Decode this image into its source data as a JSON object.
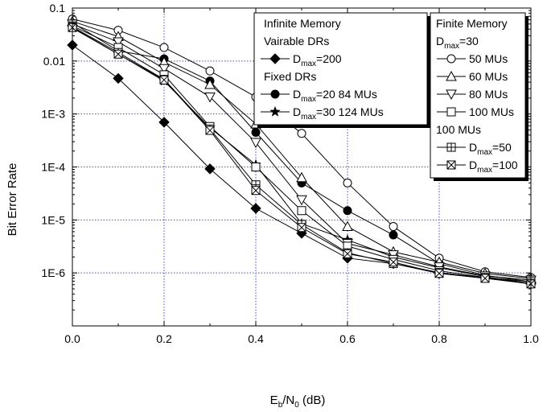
{
  "chart_data": {
    "type": "line",
    "title": "",
    "xlabel": {
      "main": "E",
      "sub1": "b",
      "mid": "/N",
      "sub2": "0",
      "tail": " (dB)"
    },
    "ylabel": "Bit Error Rate",
    "x_scale": "linear",
    "y_scale": "log",
    "xlim": [
      0.0,
      1.0
    ],
    "ylim": [
      1e-07,
      0.1
    ],
    "x_ticks": [
      {
        "value": 0.0,
        "label": "0.0"
      },
      {
        "value": 0.2,
        "label": "0.2"
      },
      {
        "value": 0.4,
        "label": "0.4"
      },
      {
        "value": 0.6,
        "label": "0.6"
      },
      {
        "value": 0.8,
        "label": "0.8"
      },
      {
        "value": 1.0,
        "label": "1.0"
      }
    ],
    "y_ticks": [
      {
        "value": 1e-06,
        "label": "1E-6"
      },
      {
        "value": 1e-05,
        "label": "1E-5"
      },
      {
        "value": 0.0001,
        "label": "1E-4"
      },
      {
        "value": 0.001,
        "label": "1E-3"
      },
      {
        "value": 0.01,
        "label": "0.01"
      },
      {
        "value": 0.1,
        "label": "0.1"
      }
    ],
    "grid": true,
    "x": [
      0.0,
      0.1,
      0.2,
      0.3,
      0.4,
      0.5,
      0.6,
      0.7,
      0.8,
      0.9,
      1.0
    ],
    "series": [
      {
        "id": "inf200",
        "marker": "diamond-filled",
        "values": [
          0.02,
          0.0047,
          0.0007,
          9.2e-05,
          1.65e-05,
          5.6e-06,
          1.9e-06,
          1.5e-06,
          9.8e-07,
          8.3e-07,
          6.2e-07
        ]
      },
      {
        "id": "fix20",
        "marker": "circle-filled",
        "values": [
          0.053,
          0.0155,
          0.011,
          0.0042,
          0.00045,
          5e-05,
          1.5e-05,
          5.2e-06,
          1.5e-06,
          9e-07,
          6.8e-07
        ]
      },
      {
        "id": "fix30",
        "marker": "star-filled",
        "values": [
          0.042,
          0.0135,
          0.0042,
          0.00055,
          0.00011,
          8.5e-06,
          4.2e-06,
          2e-06,
          1.25e-06,
          8.5e-07,
          6.3e-07
        ]
      },
      {
        "id": "fin50",
        "marker": "circle-open",
        "values": [
          0.062,
          0.038,
          0.018,
          0.0065,
          0.0021,
          0.00043,
          5e-05,
          7.5e-06,
          1.9e-06,
          1.05e-06,
          8.2e-07
        ]
      },
      {
        "id": "fin60",
        "marker": "triangle-up-open",
        "values": [
          0.056,
          0.029,
          0.0095,
          0.0036,
          0.00065,
          6.3e-05,
          7.5e-06,
          2.5e-06,
          1.6e-06,
          9.8e-07,
          7.8e-07
        ]
      },
      {
        "id": "fin80",
        "marker": "triangle-down-open",
        "values": [
          0.05,
          0.023,
          0.0072,
          0.0021,
          0.00029,
          2.4e-05,
          3.6e-06,
          2.2e-06,
          1.3e-06,
          8.8e-07,
          7.3e-07
        ]
      },
      {
        "id": "fin100",
        "marker": "square-open",
        "values": [
          0.046,
          0.018,
          0.0055,
          0.00058,
          0.0001,
          1.5e-05,
          3.2e-06,
          1.8e-06,
          1.1e-06,
          8.2e-07,
          6.8e-07
        ]
      },
      {
        "id": "fin100d50",
        "marker": "square-plus",
        "values": [
          0.044,
          0.0145,
          0.0045,
          0.00052,
          4.6e-05,
          8.2e-06,
          2.4e-06,
          1.5e-06,
          1.02e-06,
          8e-07,
          6.3e-07
        ]
      },
      {
        "id": "fin100d100",
        "marker": "square-x",
        "values": [
          0.043,
          0.0135,
          0.0044,
          0.00049,
          3.6e-05,
          7.2e-06,
          2.3e-06,
          1.6e-06,
          9.8e-07,
          7.9e-07,
          6.2e-07
        ]
      }
    ],
    "legends": [
      {
        "placement": "top-center",
        "shadow": true,
        "rows": [
          {
            "kind": "heading",
            "text": "Infinite Memory"
          },
          {
            "kind": "heading",
            "text": "Vairable DRs"
          },
          {
            "kind": "entry",
            "series": "inf200",
            "text_pre": "D",
            "text_sub": "max",
            "text_post": "=200"
          },
          {
            "kind": "heading",
            "text": "Fixed DRs"
          },
          {
            "kind": "entry",
            "series": "fix20",
            "text_pre": "D",
            "text_sub": "max",
            "text_post": "=20 84 MUs"
          },
          {
            "kind": "entry",
            "series": "fix30",
            "text_pre": "D",
            "text_sub": "max",
            "text_post": "=30 124 MUs"
          }
        ]
      },
      {
        "placement": "top-right",
        "shadow": true,
        "rows": [
          {
            "kind": "heading",
            "text": "Finite Memory"
          },
          {
            "kind": "heading-sub",
            "text_pre": "D",
            "text_sub": "max",
            "text_post": "=30"
          },
          {
            "kind": "entry",
            "series": "fin50",
            "text_pre": "50 MUs"
          },
          {
            "kind": "entry",
            "series": "fin60",
            "text_pre": "60 MUs"
          },
          {
            "kind": "entry",
            "series": "fin80",
            "text_pre": "80 MUs"
          },
          {
            "kind": "entry",
            "series": "fin100",
            "text_pre": "100 MUs"
          },
          {
            "kind": "heading",
            "text": "100 MUs"
          },
          {
            "kind": "entry",
            "series": "fin100d50",
            "text_pre": "D",
            "text_sub": "max",
            "text_post": "=50"
          },
          {
            "kind": "entry",
            "series": "fin100d100",
            "text_pre": "D",
            "text_sub": "max",
            "text_post": "=100"
          }
        ]
      }
    ]
  }
}
